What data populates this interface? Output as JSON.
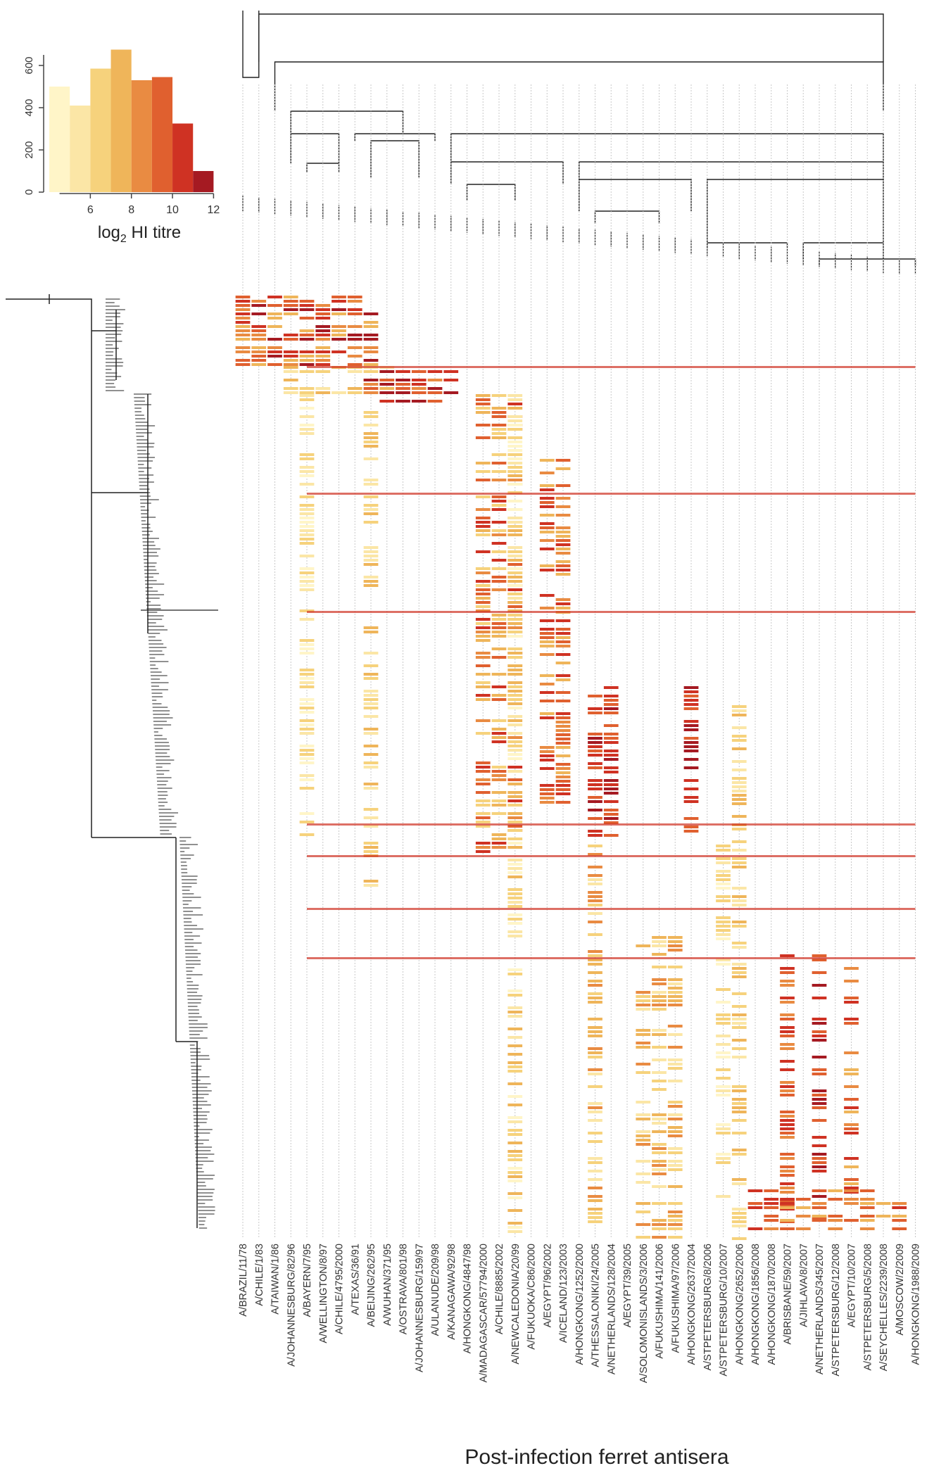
{
  "colors": {
    "palette": [
      "#fff5c8",
      "#fbe6a6",
      "#f6d27c",
      "#efb55a",
      "#e98b42",
      "#e0602f",
      "#cf3223",
      "#a51a22"
    ],
    "tree": "#222222",
    "grid": "#c8c8c8",
    "axis": "#444444"
  },
  "chart_data": [
    {
      "type": "bar",
      "x": [
        4.5,
        5.5,
        6.5,
        7.5,
        8.5,
        9.5,
        10.5,
        11.5
      ],
      "values": [
        500,
        410,
        585,
        675,
        530,
        545,
        325,
        100
      ],
      "xlim": [
        4,
        12.5
      ],
      "ylim": [
        0,
        700
      ],
      "xticks": [
        "6",
        "8",
        "10",
        "12"
      ],
      "yticks": [
        "0",
        "200",
        "400",
        "600"
      ],
      "xlabel": "log2 HI titre",
      "xlabel_main": "log",
      "xlabel_sub": "2",
      "xlabel_rest": " HI titre",
      "grid": false
    },
    {
      "type": "heatmap",
      "xlabel": "Post-infection ferret antisera",
      "columns": [
        "A/BRAZIL/11/78",
        "A/CHILE/1/83",
        "A/TAIWAN/1/86",
        "A/JOHANNESBURG/82/96",
        "A/BAYERN/7/95",
        "A/WELLINGTON/8/97",
        "A/CHILE/4795/2000",
        "A/TEXAS/36/91",
        "A/BEIJING/262/95",
        "A/WUHAN/371/95",
        "A/OSTRAVA/801/98",
        "A/JOHANNESBURG/159/97",
        "A/ULANUDE/209/98",
        "A/KANAGAWA/92/98",
        "A/HONGKONG/4847/98",
        "A/MADAGASCAR/57794/2000",
        "A/CHILE/8885/2002",
        "A/NEWCALEDONIA/20/99",
        "A/FUKUOKA/C86/2000",
        "A/EGYPT/96/2002",
        "A/ICELAND/123/2003",
        "A/HONGKONG/1252/2000",
        "A/THESSALONIKI/24/2005",
        "A/NETHERLANDS/128/2004",
        "A/EGYPT/39/2005",
        "A/SOLOMONISLANDS/3/2006",
        "A/FUKUSHIMA/141/2006",
        "A/FUKUSHIMA/97/2006",
        "A/HONGKONG/2637/2004",
        "A/STPETERSBURG/8/2006",
        "A/STPETERSBURG/10/2007",
        "A/HONGKONG/2652/2006",
        "A/HONGKONG/1856/2008",
        "A/HONGKONG/1870/2008",
        "A/BRISBANE/59/2007",
        "A/JIHLAVA/8/2007",
        "A/NETHERLANDS/345/2007",
        "A/STPETERSBURG/12/2008",
        "A/EGYPT/10/2007",
        "A/STPETERSBURG/5/2008",
        "A/SEYCHELLES/2239/2008",
        "A/MOSCOW/2/2009",
        "A/HONGKONG/1988/2009"
      ],
      "legend": "top-left histogram doubles as colour key",
      "grid": true
    }
  ]
}
